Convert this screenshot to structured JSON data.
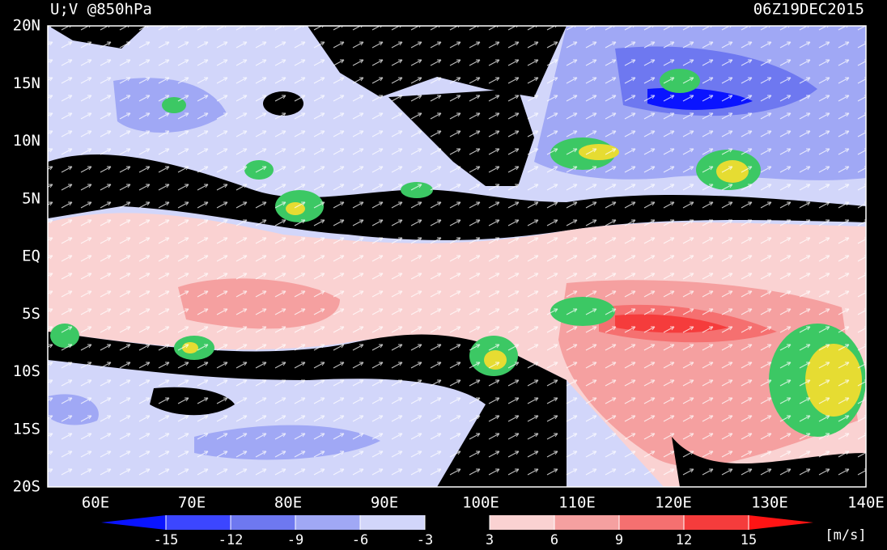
{
  "header": {
    "title": "U;V @850hPa",
    "time": "06Z19DEC2015"
  },
  "map": {
    "lat_labels": [
      "20N",
      "15N",
      "10N",
      "5N",
      "EQ",
      "5S",
      "10S",
      "15S",
      "20S"
    ],
    "lon_labels": [
      "60E",
      "70E",
      "80E",
      "90E",
      "100E",
      "110E",
      "120E",
      "130E",
      "140E"
    ]
  },
  "colorbar": {
    "levels": [
      -15,
      -12,
      -9,
      -6,
      -3,
      3,
      6,
      9,
      12,
      15
    ],
    "colors": [
      "#0a14ff",
      "#3c46ff",
      "#6e78f0",
      "#a0a8f5",
      "#d2d6fa",
      "#000000",
      "#fad2d2",
      "#f5a0a0",
      "#f57070",
      "#f53c3c",
      "#ff1414"
    ],
    "unit": "[m/s]"
  }
}
